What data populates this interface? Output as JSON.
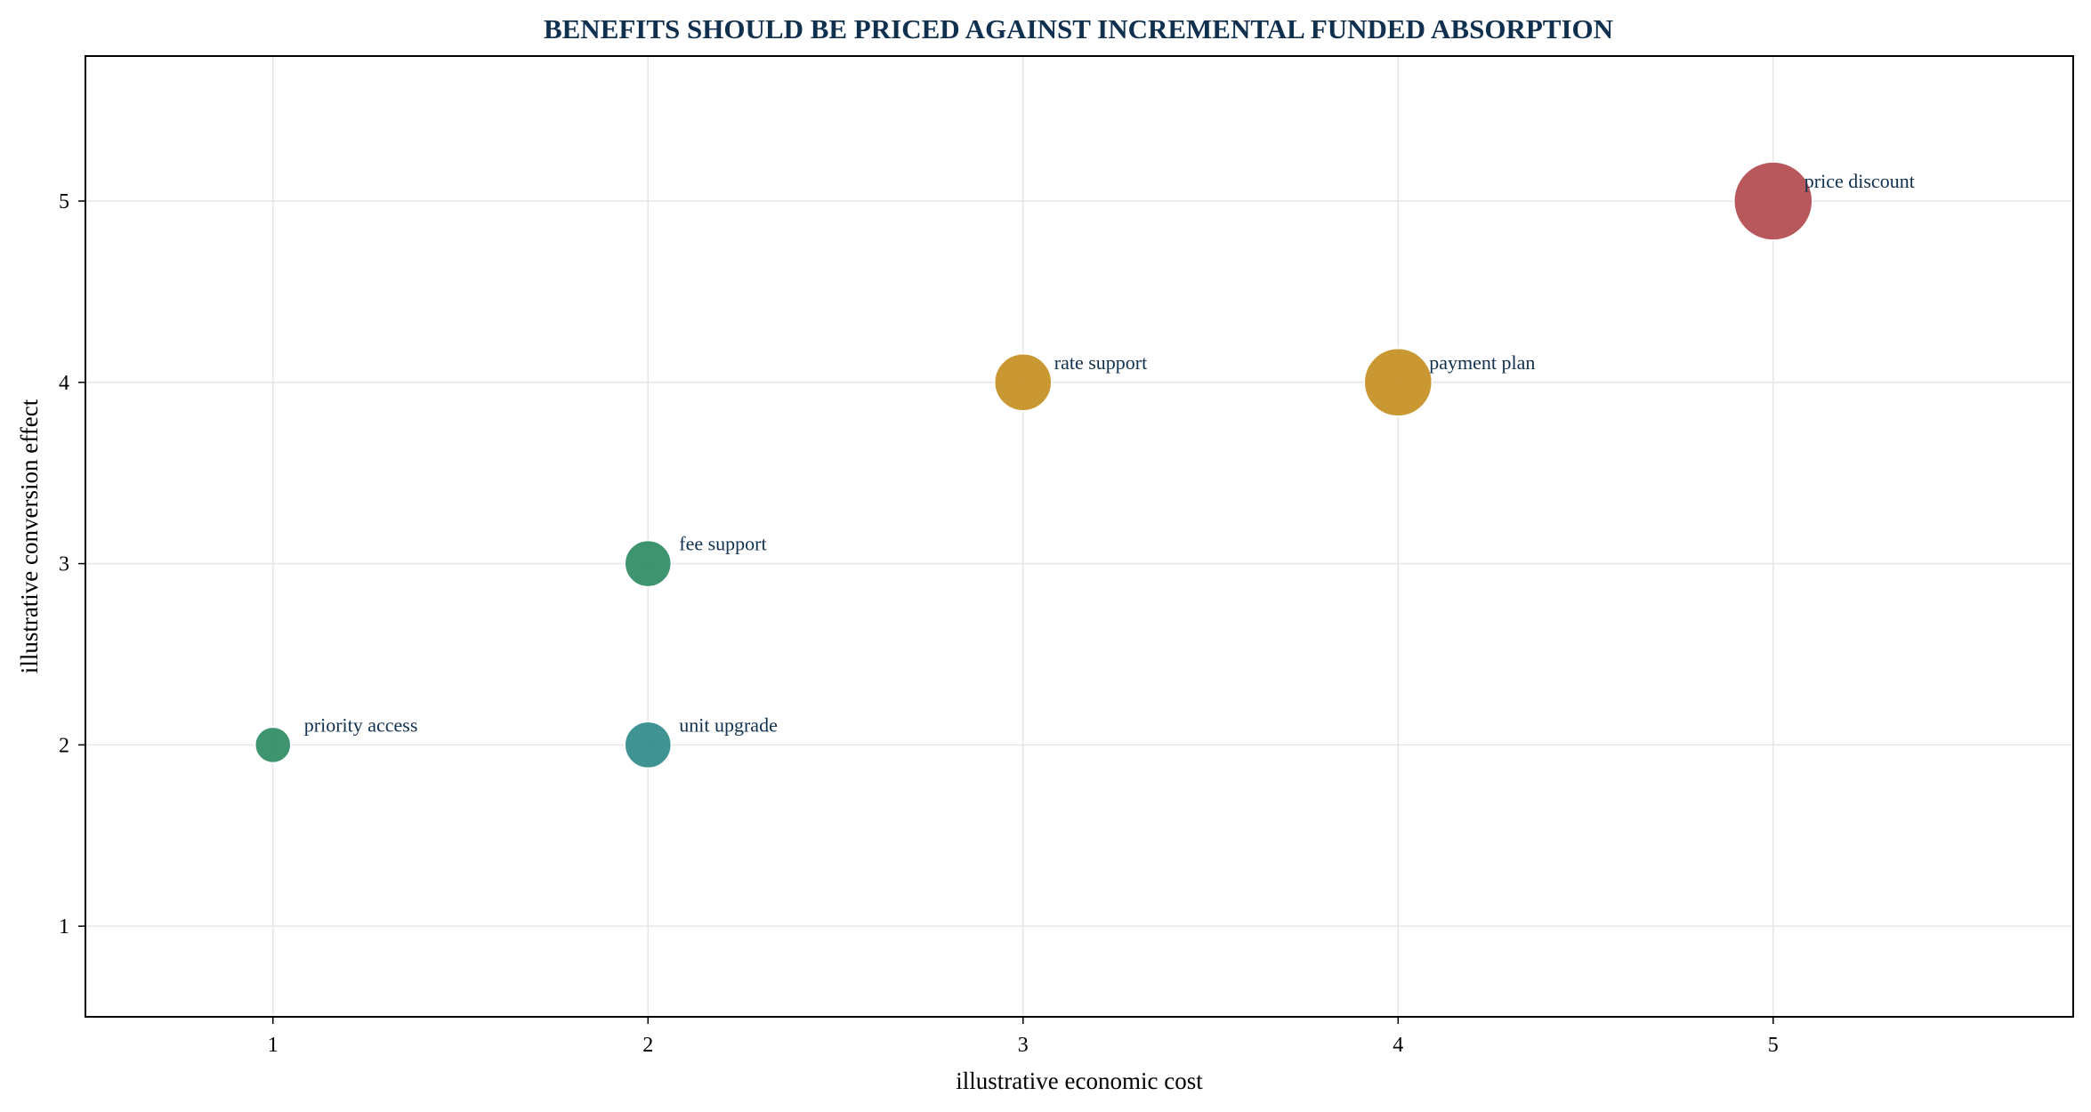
{
  "chart_data": {
    "type": "scatter",
    "title": "BENEFITS SHOULD BE PRICED AGAINST INCREMENTAL FUNDED ABSORPTION",
    "xlabel": "illustrative economic cost",
    "ylabel": "illustrative conversion effect",
    "xlim": [
      0.5,
      5.8
    ],
    "ylim": [
      0.5,
      5.8
    ],
    "xticks": [
      1,
      2,
      3,
      4,
      5
    ],
    "yticks": [
      1,
      2,
      3,
      4,
      5
    ],
    "grid": true,
    "points": [
      {
        "label": "priority access",
        "x": 1,
        "y": 2,
        "size": 1,
        "color": "#2e8b62"
      },
      {
        "label": "unit upgrade",
        "x": 2,
        "y": 2,
        "size": 2,
        "color": "#2f8a8a"
      },
      {
        "label": "fee support",
        "x": 2,
        "y": 3,
        "size": 2,
        "color": "#2e8b62"
      },
      {
        "label": "rate support",
        "x": 3,
        "y": 4,
        "size": 3,
        "color": "#c68f22"
      },
      {
        "label": "payment plan",
        "x": 4,
        "y": 4,
        "size": 4,
        "color": "#c68f22"
      },
      {
        "label": "price discount",
        "x": 5,
        "y": 5,
        "size": 5,
        "color": "#b24a4e"
      }
    ]
  },
  "colors": {
    "title": "#10304f",
    "point_label": "#10304f",
    "grid": "#e6e6e6"
  }
}
